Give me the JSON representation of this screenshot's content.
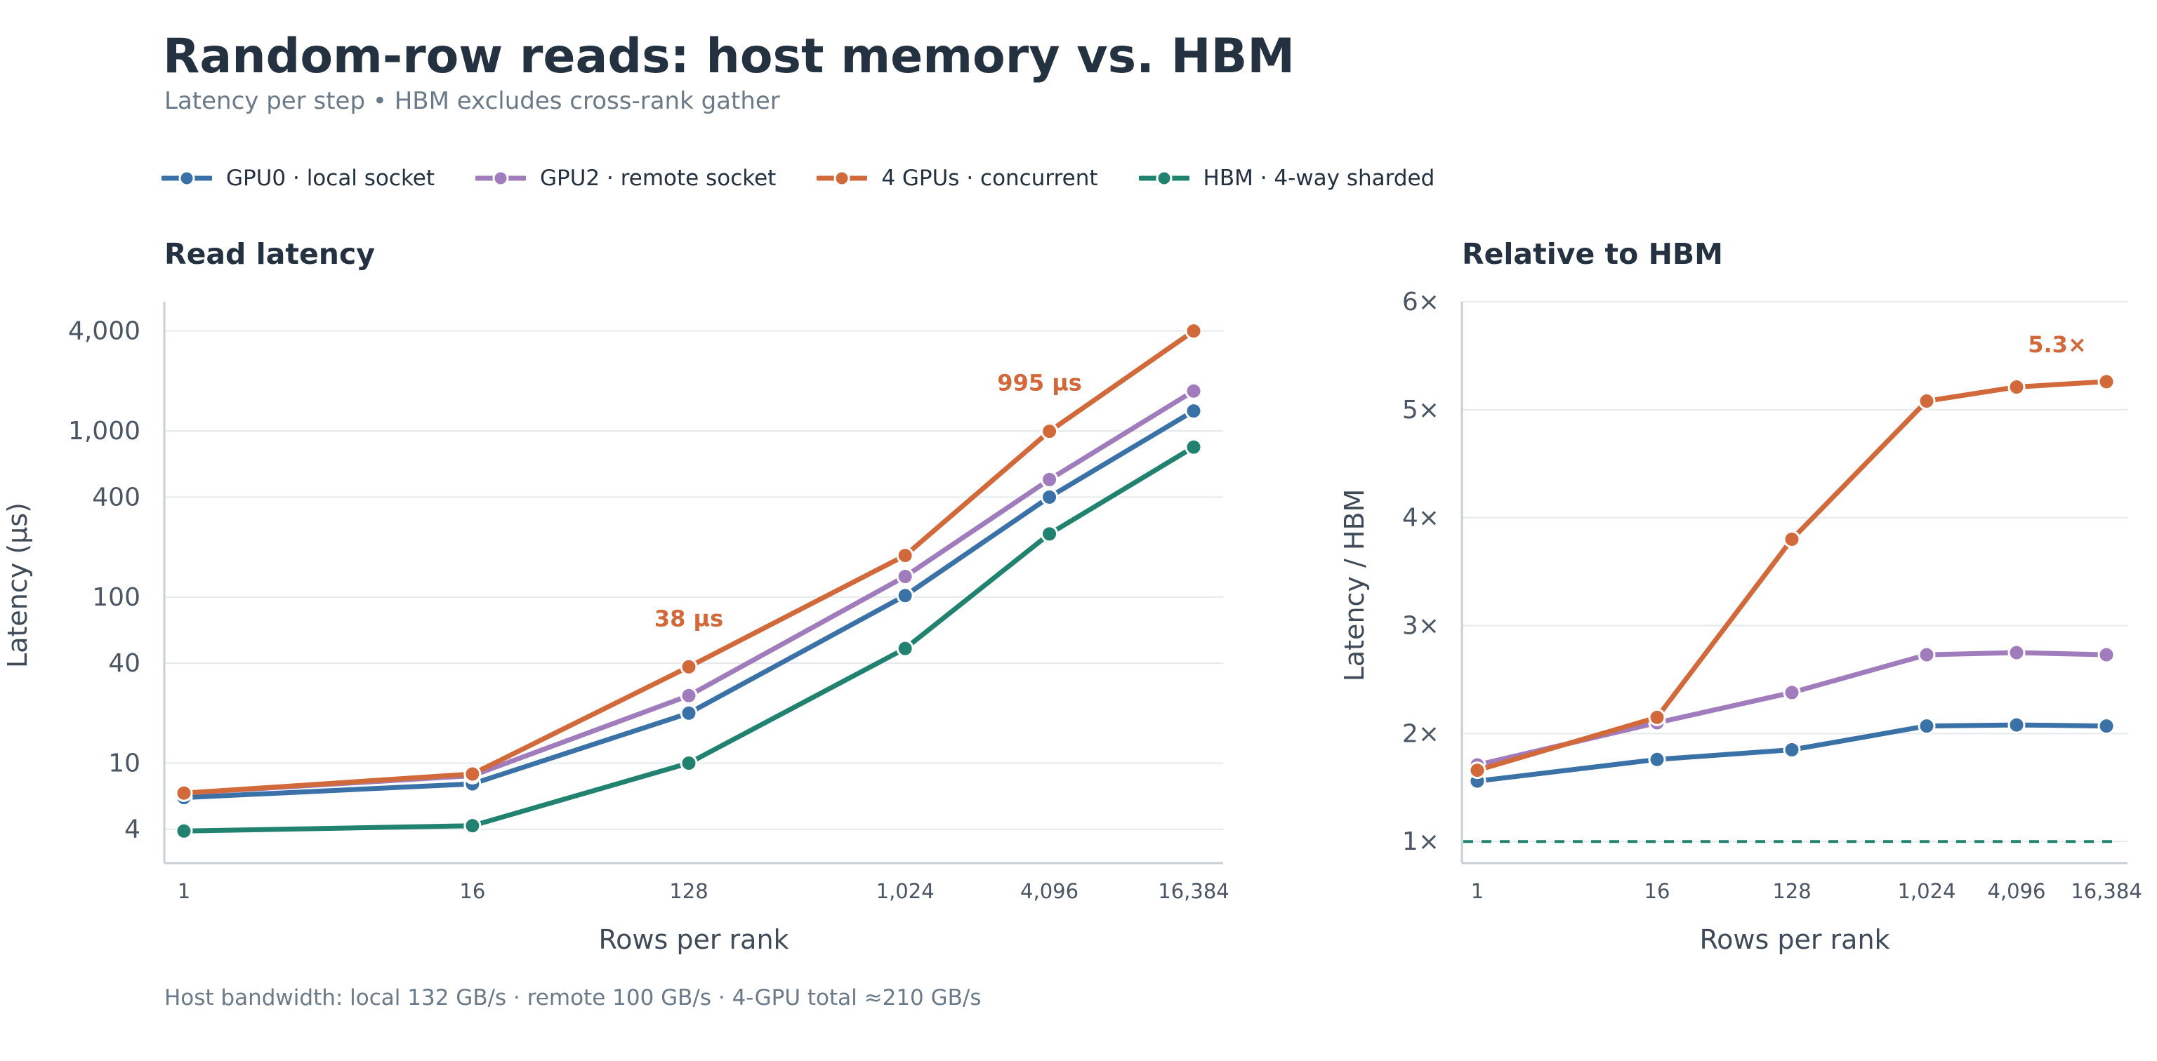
{
  "title": "Random-row reads: host memory vs. HBM",
  "subtitle": "Latency per step • HBM excludes cross-rank gather",
  "footnote": "Host bandwidth: local 132 GB/s · remote 100 GB/s · 4-GPU total ≈210 GB/s",
  "colors": {
    "gpu0_local": "#3a72a8",
    "gpu2_remote": "#a07cbd",
    "four_gpu": "#d2693a",
    "hbm": "#21836f",
    "grid": "#e6e9ec",
    "axis": "#c9cfd4"
  },
  "legend": [
    {
      "key": "gpu0_local",
      "label": "GPU0 · local socket"
    },
    {
      "key": "gpu2_remote",
      "label": "GPU2 · remote socket"
    },
    {
      "key": "four_gpu",
      "label": "4 GPUs · concurrent"
    },
    {
      "key": "hbm",
      "label": "HBM · 4-way sharded"
    }
  ],
  "chart_data": [
    {
      "type": "line",
      "title": "Read latency",
      "xlabel": "Rows per rank",
      "ylabel": "Latency (µs)",
      "x_scale": "log2",
      "y_scale": "log",
      "grid": true,
      "x": [
        1,
        16,
        128,
        1024,
        4096,
        16384
      ],
      "x_tick_labels": [
        "1",
        "16",
        "128",
        "1,024",
        "4,096",
        "16,384"
      ],
      "y_ticks": [
        4,
        10,
        40,
        100,
        400,
        1000,
        4000
      ],
      "y_tick_labels": [
        "4",
        "10",
        "40",
        "100",
        "400",
        "1,000",
        "4,000"
      ],
      "ylim": [
        2.5,
        6000
      ],
      "series": [
        {
          "key": "gpu0_local",
          "name": "GPU0 · local socket",
          "values": [
            6.2,
            7.5,
            20,
            102,
            400,
            1320
          ]
        },
        {
          "key": "gpu2_remote",
          "name": "GPU2 · remote socket",
          "values": [
            6.6,
            8.4,
            25.5,
            133,
            510,
            1740
          ]
        },
        {
          "key": "four_gpu",
          "name": "4 GPUs · concurrent",
          "values": [
            6.6,
            8.6,
            38,
            178,
            995,
            4000
          ]
        },
        {
          "key": "hbm",
          "name": "HBM · 4-way sharded",
          "values": [
            3.9,
            4.2,
            10,
            49,
            240,
            800
          ]
        }
      ],
      "annotations": [
        {
          "text": "38 µs",
          "series": "four_gpu",
          "x": 128,
          "y": 38
        },
        {
          "text": "995 µs",
          "series": "four_gpu",
          "x": 4096,
          "y": 995
        }
      ]
    },
    {
      "type": "line",
      "title": "Relative to HBM",
      "xlabel": "Rows per rank",
      "ylabel": "Latency / HBM",
      "x_scale": "log2",
      "y_scale": "linear",
      "grid": true,
      "x": [
        1,
        16,
        128,
        1024,
        4096,
        16384
      ],
      "x_tick_labels": [
        "1",
        "16",
        "128",
        "1,024",
        "4,096",
        "16,384"
      ],
      "y_ticks": [
        1,
        2,
        3,
        4,
        5,
        6
      ],
      "y_tick_labels": [
        "1×",
        "2×",
        "3×",
        "4×",
        "5×",
        "6×"
      ],
      "ylim": [
        0.8,
        6
      ],
      "baseline": {
        "key": "hbm",
        "y": 1
      },
      "series": [
        {
          "key": "gpu0_local",
          "name": "GPU0 · local socket",
          "values": [
            1.56,
            1.76,
            1.85,
            2.07,
            2.08,
            2.07
          ]
        },
        {
          "key": "gpu2_remote",
          "name": "GPU2 · remote socket",
          "values": [
            1.71,
            2.1,
            2.38,
            2.73,
            2.75,
            2.73
          ]
        },
        {
          "key": "four_gpu",
          "name": "4 GPUs · concurrent",
          "values": [
            1.66,
            2.15,
            3.8,
            5.08,
            5.21,
            5.26
          ]
        }
      ],
      "annotations": [
        {
          "text": "5.3×",
          "series": "four_gpu",
          "x": 16384,
          "y": 5.26
        }
      ]
    }
  ]
}
